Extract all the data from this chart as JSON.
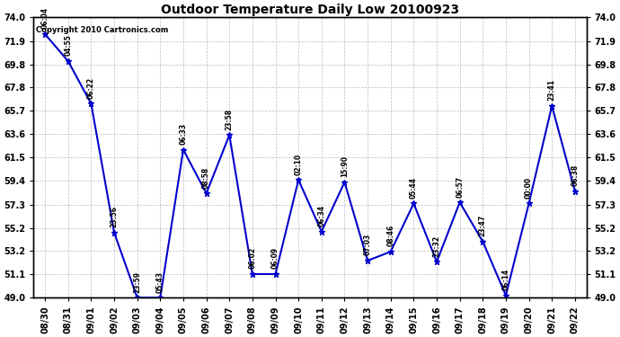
{
  "title": "Outdoor Temperature Daily Low 20100923",
  "copyright_text": "Copyright 2010 Cartronics.com",
  "x_labels": [
    "08/30",
    "08/31",
    "09/01",
    "09/02",
    "09/03",
    "09/04",
    "09/05",
    "09/06",
    "09/07",
    "09/08",
    "09/09",
    "09/10",
    "09/11",
    "09/12",
    "09/13",
    "09/14",
    "09/15",
    "09/16",
    "09/17",
    "09/18",
    "09/19",
    "09/20",
    "09/21",
    "09/22"
  ],
  "y_values": [
    72.5,
    70.1,
    66.3,
    54.8,
    49.0,
    49.0,
    62.2,
    58.3,
    63.5,
    51.1,
    51.1,
    59.5,
    54.9,
    59.3,
    52.3,
    53.1,
    57.4,
    52.2,
    57.5,
    54.0,
    49.2,
    57.4,
    66.1,
    58.5
  ],
  "time_labels": [
    "06:04",
    "04:55",
    "06:22",
    "23:56",
    "23:59",
    "05:43",
    "06:33",
    "08:58",
    "23:58",
    "06:02",
    "06:09",
    "02:10",
    "06:34",
    "15:90",
    "07:03",
    "08:46",
    "05:44",
    "23:32",
    "06:57",
    "23:47",
    "06:14",
    "00:00",
    "23:41",
    "06:38"
  ],
  "line_color": "#0000cc",
  "marker_color": "#0000cc",
  "background_color": "#ffffff",
  "grid_color": "#bbbbbb",
  "ylim": [
    49.0,
    74.0
  ],
  "yticks": [
    49.0,
    51.1,
    53.2,
    55.2,
    57.3,
    59.4,
    61.5,
    63.6,
    65.7,
    67.8,
    69.8,
    71.9,
    74.0
  ],
  "figsize": [
    6.9,
    3.75
  ],
  "dpi": 100
}
